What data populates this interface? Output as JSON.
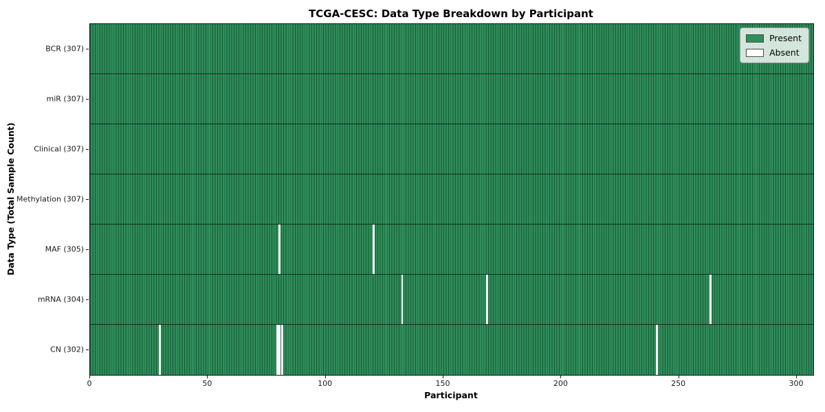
{
  "chart_data": {
    "type": "heatmap",
    "title": "TCGA-CESC: Data Type Breakdown by Participant",
    "xlabel": "Participant",
    "ylabel": "Data Type (Total Sample Count)",
    "x_range": [
      0,
      307
    ],
    "x_ticks": [
      0,
      50,
      100,
      150,
      200,
      250,
      300
    ],
    "n_participants": 307,
    "grid": false,
    "legend_position": "upper right",
    "rows": [
      {
        "data_type": "BCR",
        "label": "BCR (307)",
        "total": 307,
        "absent_participants": []
      },
      {
        "data_type": "miR",
        "label": "miR (307)",
        "total": 307,
        "absent_participants": []
      },
      {
        "data_type": "Clinical",
        "label": "Clinical (307)",
        "total": 307,
        "absent_participants": []
      },
      {
        "data_type": "Methylation",
        "label": "Methylation (307)",
        "total": 307,
        "absent_participants": []
      },
      {
        "data_type": "MAF",
        "label": "MAF (305)",
        "total": 305,
        "absent_participants": [
          80,
          120
        ]
      },
      {
        "data_type": "mRNA",
        "label": "mRNA (304)",
        "total": 304,
        "absent_participants": [
          132,
          168,
          263
        ]
      },
      {
        "data_type": "CN",
        "label": "CN (302)",
        "total": 302,
        "absent_participants": [
          29,
          79,
          80,
          81,
          240
        ]
      }
    ],
    "legend": [
      {
        "label": "Present",
        "color": "#2e8f5b"
      },
      {
        "label": "Absent",
        "color": "#ffffff"
      }
    ],
    "colors": {
      "present": "#2e8f5b",
      "absent": "#ffffff",
      "cell_edge": "rgba(0,0,0,0.42)",
      "row_separator": "rgba(0,0,0,0.65)",
      "spine": "#141414"
    }
  }
}
